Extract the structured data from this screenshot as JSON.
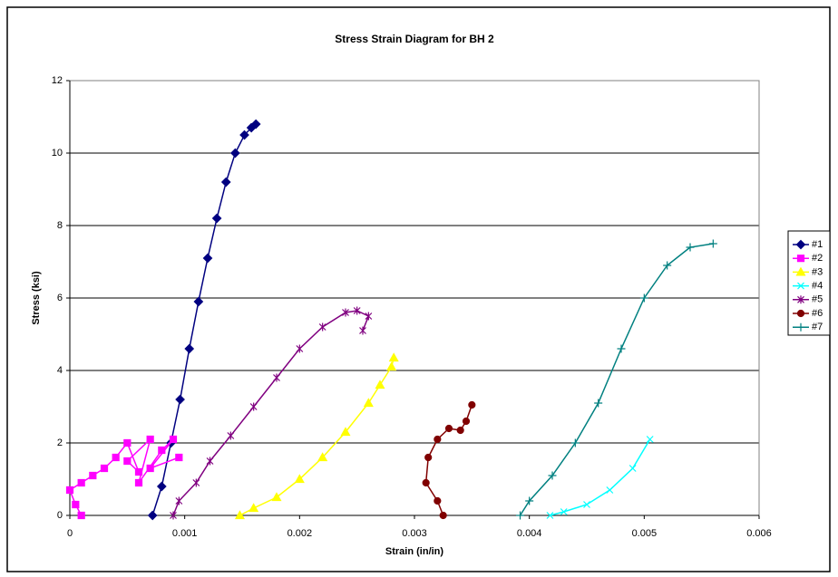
{
  "chart_data": {
    "type": "scatter",
    "title": "Stress Strain Diagram for BH 2",
    "xlabel": "Strain (in/in)",
    "ylabel": "Stress (ksi)",
    "xlim": [
      0,
      0.006
    ],
    "xticks": [
      0,
      0.001,
      0.002,
      0.003,
      0.004,
      0.005,
      0.006
    ],
    "ylim": [
      0,
      12
    ],
    "yticks": [
      0,
      2,
      4,
      6,
      8,
      10,
      12
    ],
    "grid": true,
    "legend": "right",
    "series": [
      {
        "name": "#1",
        "color": "#000080",
        "marker": "diamond",
        "x": [
          0.00072,
          0.0008,
          0.00088,
          0.00096,
          0.00104,
          0.00112,
          0.0012,
          0.00128,
          0.00136,
          0.00144,
          0.00152,
          0.00158,
          0.00162
        ],
        "y": [
          0,
          0.8,
          2,
          3.2,
          4.6,
          5.9,
          7.1,
          8.2,
          9.2,
          10.0,
          10.5,
          10.7,
          10.8
        ]
      },
      {
        "name": "#2",
        "color": "#ff00ff",
        "marker": "square",
        "x": [
          0.0001,
          5e-05,
          0.0,
          0.0001,
          0.0002,
          0.0003,
          0.0004,
          0.0005,
          0.0006,
          0.0005,
          0.0007,
          0.0006,
          0.0008,
          0.0009,
          0.0007,
          0.00095
        ],
        "y": [
          0,
          0.3,
          0.7,
          0.9,
          1.1,
          1.3,
          1.6,
          2.0,
          1.2,
          1.5,
          2.1,
          0.9,
          1.8,
          2.1,
          1.3,
          1.6
        ]
      },
      {
        "name": "#3",
        "color": "#ffff00",
        "marker": "triangle",
        "x": [
          0.00148,
          0.0016,
          0.0018,
          0.002,
          0.0022,
          0.0024,
          0.0026,
          0.0027,
          0.0028,
          0.00282
        ],
        "y": [
          0,
          0.2,
          0.5,
          1.0,
          1.6,
          2.3,
          3.1,
          3.6,
          4.1,
          4.35
        ]
      },
      {
        "name": "#4",
        "color": "#00ffff",
        "marker": "x",
        "x": [
          0.00418,
          0.0043,
          0.0045,
          0.0047,
          0.0049,
          0.00505
        ],
        "y": [
          0,
          0.1,
          0.3,
          0.7,
          1.3,
          2.1
        ]
      },
      {
        "name": "#5",
        "color": "#800080",
        "marker": "star",
        "x": [
          0.0009,
          0.00095,
          0.0011,
          0.00122,
          0.0014,
          0.0016,
          0.0018,
          0.002,
          0.0022,
          0.0024,
          0.0025,
          0.0026,
          0.00255
        ],
        "y": [
          0,
          0.4,
          0.9,
          1.5,
          2.2,
          3,
          3.8,
          4.6,
          5.2,
          5.6,
          5.65,
          5.5,
          5.1
        ]
      },
      {
        "name": "#6",
        "color": "#800000",
        "marker": "circle",
        "x": [
          0.00325,
          0.0032,
          0.0031,
          0.00312,
          0.0032,
          0.0033,
          0.0034,
          0.00345,
          0.0035
        ],
        "y": [
          0,
          0.4,
          0.9,
          1.6,
          2.1,
          2.4,
          2.35,
          2.6,
          3.05
        ]
      },
      {
        "name": "#7",
        "color": "#008080",
        "marker": "plus",
        "x": [
          0.00392,
          0.004,
          0.0042,
          0.0044,
          0.0046,
          0.0048,
          0.005,
          0.0052,
          0.0054,
          0.0056
        ],
        "y": [
          0,
          0.4,
          1.1,
          2,
          3.1,
          4.6,
          6,
          6.9,
          7.4,
          7.5
        ]
      }
    ]
  }
}
